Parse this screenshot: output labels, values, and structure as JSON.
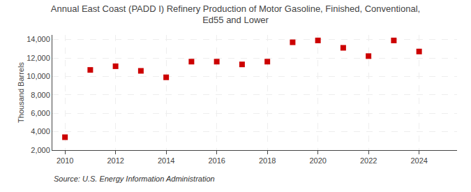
{
  "chart_data": {
    "type": "scatter",
    "title": "Annual East Coast (PADD I) Refinery Production of Motor Gasoline, Finished, Conventional,\nEd55 and Lower",
    "ylabel": "Thousand Barrels",
    "annotations": [
      "Source: U.S. Energy Information Administration"
    ],
    "x": [
      2010,
      2011,
      2012,
      2013,
      2014,
      2015,
      2016,
      2017,
      2018,
      2019,
      2020,
      2021,
      2022,
      2023,
      2024
    ],
    "values": [
      3400,
      10700,
      11100,
      10600,
      9900,
      11600,
      11600,
      11300,
      11600,
      13700,
      13900,
      13100,
      12200,
      13900,
      12700
    ],
    "color": "#cc0000",
    "marker": "square",
    "xlim": [
      2009.5,
      2025.5
    ],
    "ylim": [
      2000,
      14500
    ],
    "xticks": [
      2010,
      2012,
      2014,
      2016,
      2018,
      2020,
      2022,
      2024
    ],
    "yticks": [
      {
        "value": 2000,
        "label": "2,000"
      },
      {
        "value": 4000,
        "label": "4,000"
      },
      {
        "value": 6000,
        "label": "6,000"
      },
      {
        "value": 8000,
        "label": "8,000"
      },
      {
        "value": 10000,
        "label": "10,000"
      },
      {
        "value": 12000,
        "label": "12,000"
      },
      {
        "value": 14000,
        "label": "14,000"
      }
    ],
    "grid": true
  }
}
